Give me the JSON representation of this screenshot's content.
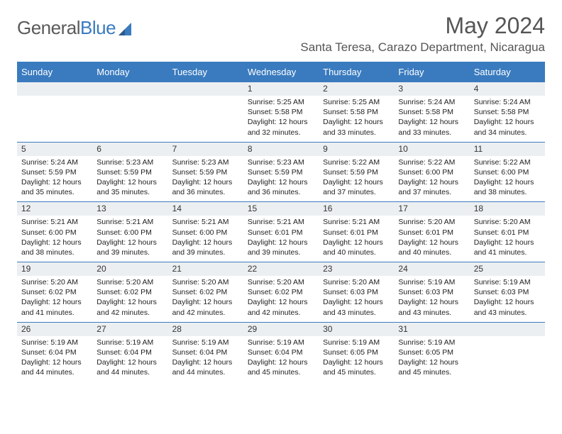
{
  "logo": {
    "text1": "General",
    "text2": "Blue"
  },
  "title": "May 2024",
  "location": "Santa Teresa, Carazo Department, Nicaragua",
  "day_names": [
    "Sunday",
    "Monday",
    "Tuesday",
    "Wednesday",
    "Thursday",
    "Friday",
    "Saturday"
  ],
  "colors": {
    "accent": "#3a7bbf",
    "header_text": "#ffffff",
    "daynum_bg": "#eceff1",
    "body_text": "#222222",
    "title_text": "#555555"
  },
  "weeks": [
    [
      null,
      null,
      null,
      {
        "n": "1",
        "sunrise": "5:25 AM",
        "sunset": "5:58 PM",
        "daylight": "12 hours and 32 minutes."
      },
      {
        "n": "2",
        "sunrise": "5:25 AM",
        "sunset": "5:58 PM",
        "daylight": "12 hours and 33 minutes."
      },
      {
        "n": "3",
        "sunrise": "5:24 AM",
        "sunset": "5:58 PM",
        "daylight": "12 hours and 33 minutes."
      },
      {
        "n": "4",
        "sunrise": "5:24 AM",
        "sunset": "5:58 PM",
        "daylight": "12 hours and 34 minutes."
      }
    ],
    [
      {
        "n": "5",
        "sunrise": "5:24 AM",
        "sunset": "5:59 PM",
        "daylight": "12 hours and 35 minutes."
      },
      {
        "n": "6",
        "sunrise": "5:23 AM",
        "sunset": "5:59 PM",
        "daylight": "12 hours and 35 minutes."
      },
      {
        "n": "7",
        "sunrise": "5:23 AM",
        "sunset": "5:59 PM",
        "daylight": "12 hours and 36 minutes."
      },
      {
        "n": "8",
        "sunrise": "5:23 AM",
        "sunset": "5:59 PM",
        "daylight": "12 hours and 36 minutes."
      },
      {
        "n": "9",
        "sunrise": "5:22 AM",
        "sunset": "5:59 PM",
        "daylight": "12 hours and 37 minutes."
      },
      {
        "n": "10",
        "sunrise": "5:22 AM",
        "sunset": "6:00 PM",
        "daylight": "12 hours and 37 minutes."
      },
      {
        "n": "11",
        "sunrise": "5:22 AM",
        "sunset": "6:00 PM",
        "daylight": "12 hours and 38 minutes."
      }
    ],
    [
      {
        "n": "12",
        "sunrise": "5:21 AM",
        "sunset": "6:00 PM",
        "daylight": "12 hours and 38 minutes."
      },
      {
        "n": "13",
        "sunrise": "5:21 AM",
        "sunset": "6:00 PM",
        "daylight": "12 hours and 39 minutes."
      },
      {
        "n": "14",
        "sunrise": "5:21 AM",
        "sunset": "6:00 PM",
        "daylight": "12 hours and 39 minutes."
      },
      {
        "n": "15",
        "sunrise": "5:21 AM",
        "sunset": "6:01 PM",
        "daylight": "12 hours and 39 minutes."
      },
      {
        "n": "16",
        "sunrise": "5:21 AM",
        "sunset": "6:01 PM",
        "daylight": "12 hours and 40 minutes."
      },
      {
        "n": "17",
        "sunrise": "5:20 AM",
        "sunset": "6:01 PM",
        "daylight": "12 hours and 40 minutes."
      },
      {
        "n": "18",
        "sunrise": "5:20 AM",
        "sunset": "6:01 PM",
        "daylight": "12 hours and 41 minutes."
      }
    ],
    [
      {
        "n": "19",
        "sunrise": "5:20 AM",
        "sunset": "6:02 PM",
        "daylight": "12 hours and 41 minutes."
      },
      {
        "n": "20",
        "sunrise": "5:20 AM",
        "sunset": "6:02 PM",
        "daylight": "12 hours and 42 minutes."
      },
      {
        "n": "21",
        "sunrise": "5:20 AM",
        "sunset": "6:02 PM",
        "daylight": "12 hours and 42 minutes."
      },
      {
        "n": "22",
        "sunrise": "5:20 AM",
        "sunset": "6:02 PM",
        "daylight": "12 hours and 42 minutes."
      },
      {
        "n": "23",
        "sunrise": "5:20 AM",
        "sunset": "6:03 PM",
        "daylight": "12 hours and 43 minutes."
      },
      {
        "n": "24",
        "sunrise": "5:19 AM",
        "sunset": "6:03 PM",
        "daylight": "12 hours and 43 minutes."
      },
      {
        "n": "25",
        "sunrise": "5:19 AM",
        "sunset": "6:03 PM",
        "daylight": "12 hours and 43 minutes."
      }
    ],
    [
      {
        "n": "26",
        "sunrise": "5:19 AM",
        "sunset": "6:04 PM",
        "daylight": "12 hours and 44 minutes."
      },
      {
        "n": "27",
        "sunrise": "5:19 AM",
        "sunset": "6:04 PM",
        "daylight": "12 hours and 44 minutes."
      },
      {
        "n": "28",
        "sunrise": "5:19 AM",
        "sunset": "6:04 PM",
        "daylight": "12 hours and 44 minutes."
      },
      {
        "n": "29",
        "sunrise": "5:19 AM",
        "sunset": "6:04 PM",
        "daylight": "12 hours and 45 minutes."
      },
      {
        "n": "30",
        "sunrise": "5:19 AM",
        "sunset": "6:05 PM",
        "daylight": "12 hours and 45 minutes."
      },
      {
        "n": "31",
        "sunrise": "5:19 AM",
        "sunset": "6:05 PM",
        "daylight": "12 hours and 45 minutes."
      },
      null
    ]
  ],
  "labels": {
    "sunrise": "Sunrise: ",
    "sunset": "Sunset: ",
    "daylight": "Daylight: "
  }
}
